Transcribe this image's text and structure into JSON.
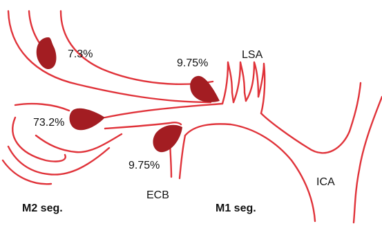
{
  "labels": {
    "aneurysm_upper_m2": "7.3%",
    "aneurysm_bifurcation": "73.2%",
    "aneurysm_ecb": "9.75%",
    "aneurysm_lsa": "9.75%",
    "lsa": "LSA",
    "ica": "ICA",
    "ecb": "ECB",
    "m2_segment": "M2 seg.",
    "m1_segment": "M1 seg."
  },
  "colors": {
    "vessel_wall": "#e0333a",
    "aneurysm_fill": "#a31d22",
    "text": "#111111"
  }
}
